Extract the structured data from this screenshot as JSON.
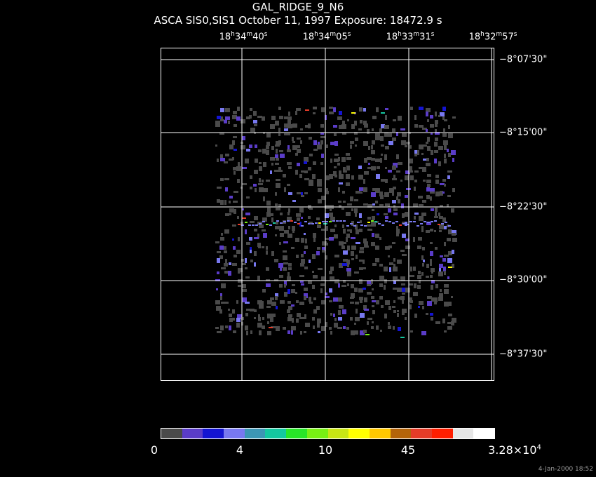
{
  "header": {
    "title": "GAL_RIDGE_9_N6",
    "subtitle": "ASCA SIS0,SIS1 October 11, 1997 Exposure: 18472.9 s"
  },
  "ra_labels": [
    {
      "h": "18",
      "m": "34",
      "s": "40"
    },
    {
      "h": "18",
      "m": "34",
      "s": "05"
    },
    {
      "h": "18",
      "m": "33",
      "s": "31"
    },
    {
      "h": "18",
      "m": "32",
      "s": "57"
    }
  ],
  "dec_labels": [
    "−8°07'30\"",
    "−8°15'00\"",
    "−8°22'30\"",
    "−8°30'00\"",
    "−8°37'30\""
  ],
  "colorbar": {
    "colors": [
      "#4a4a4a",
      "#5a3cc8",
      "#1414d2",
      "#7878f0",
      "#3c96b4",
      "#14c8a0",
      "#28e628",
      "#78f014",
      "#c8e614",
      "#ffff00",
      "#ffc800",
      "#b4640a",
      "#e63c28",
      "#ff1e00",
      "#e6e6e6",
      "#ffffff"
    ],
    "labels": [
      {
        "text": "0"
      },
      {
        "text": "4"
      },
      {
        "text": "10"
      },
      {
        "text": "45"
      },
      {
        "text": "3.28×10",
        "sup": "4"
      }
    ]
  },
  "image_colors": {
    "background": "#000000",
    "noise": "#4a4a4a",
    "faint": "#5a3cc8",
    "medium": "#1414d2",
    "bright": "#7878f0",
    "hot": [
      "#14c8a0",
      "#78f014",
      "#ffff00",
      "#e63c28"
    ]
  },
  "timestamp": "4-Jan-2000 18:52"
}
